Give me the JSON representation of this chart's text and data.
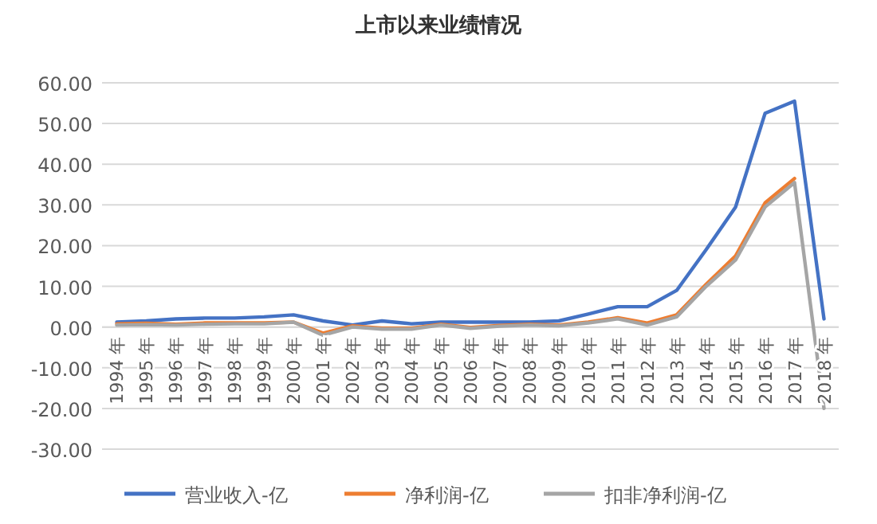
{
  "chart_data": {
    "type": "line",
    "title": "上市以来业绩情况",
    "categories": [
      "1994 年",
      "1995 年",
      "1996 年",
      "1997 年",
      "1998 年",
      "1999 年",
      "2000 年",
      "2001 年",
      "2002 年",
      "2003 年",
      "2004 年",
      "2005 年",
      "2006 年",
      "2007 年",
      "2008 年",
      "2009 年",
      "2010 年",
      "2011 年",
      "2012 年",
      "2013 年",
      "2014 年",
      "2015 年",
      "2016 年",
      "2017 年",
      "2018 年"
    ],
    "series": [
      {
        "name": "营业收入-亿",
        "color": "#4472c4",
        "values": [
          1.2,
          1.5,
          2.0,
          2.2,
          2.2,
          2.5,
          3.0,
          1.5,
          0.5,
          1.5,
          0.8,
          1.2,
          1.2,
          1.2,
          1.2,
          1.5,
          3.2,
          5,
          5,
          9,
          19,
          29.5,
          52.5,
          55.5,
          2
        ]
      },
      {
        "name": "净利润-亿",
        "color": "#ed7d31",
        "values": [
          0.8,
          0.9,
          0.7,
          1.0,
          1.0,
          1.0,
          1.2,
          -1.5,
          0.3,
          -0.3,
          -0.3,
          0.7,
          -0.1,
          0.4,
          0.7,
          0.5,
          1.2,
          2.3,
          1,
          3,
          10.5,
          17.5,
          30.5,
          36.5,
          null
        ]
      },
      {
        "name": "扣非净利润-亿",
        "color": "#a5a5a5",
        "values": [
          0.5,
          0.6,
          0.5,
          0.7,
          0.8,
          0.8,
          1.2,
          -2.0,
          0,
          -0.5,
          -0.5,
          0.5,
          -0.3,
          0.2,
          0.5,
          0.3,
          1,
          2,
          0.5,
          2.5,
          10,
          16.5,
          29.5,
          35.5,
          -20
        ]
      }
    ],
    "ylim": [
      -30,
      60
    ],
    "yticks": [
      {
        "value": -30,
        "label": "-30.00"
      },
      {
        "value": -20,
        "label": "-20.00"
      },
      {
        "value": -10,
        "label": "-10.00"
      },
      {
        "value": 0,
        "label": "0.00"
      },
      {
        "value": 10,
        "label": "10.00"
      },
      {
        "value": 20,
        "label": "20.00"
      },
      {
        "value": 30,
        "label": "30.00"
      },
      {
        "value": 40,
        "label": "40.00"
      },
      {
        "value": 50,
        "label": "50.00"
      },
      {
        "value": 60,
        "label": "60.00"
      }
    ],
    "grid": "y",
    "legend": "bottom"
  }
}
